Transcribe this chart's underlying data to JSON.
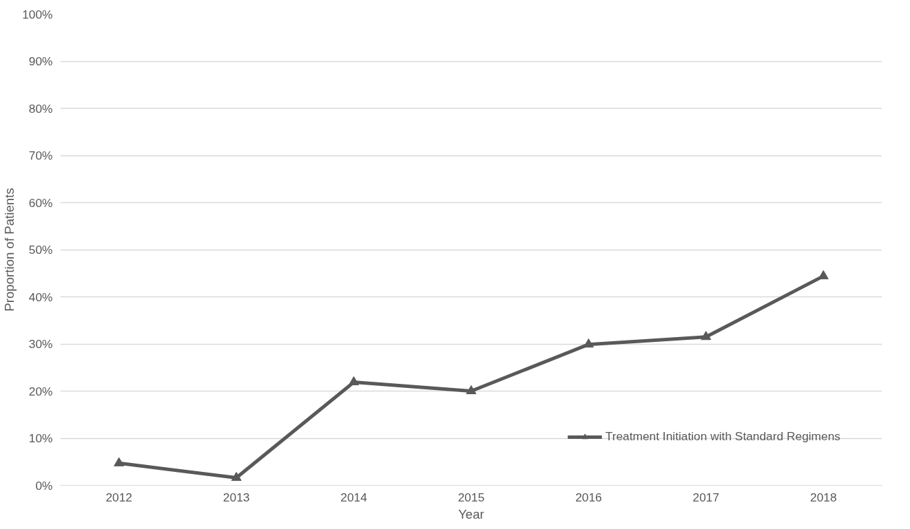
{
  "chart_data": {
    "type": "line",
    "xlabel": "Year",
    "ylabel": "Proportion of Patients",
    "categories": [
      "2012",
      "2013",
      "2014",
      "2015",
      "2016",
      "2017",
      "2018"
    ],
    "series": [
      {
        "name": "Treatment Initiation with Standard Regimens",
        "color": "#595959",
        "values": [
          4.7,
          1.6,
          21.9,
          20.0,
          29.9,
          31.5,
          44.4
        ]
      }
    ],
    "ylim": [
      0,
      100
    ],
    "yticks": [
      {
        "value": 0,
        "label": "0%"
      },
      {
        "value": 10,
        "label": "10%"
      },
      {
        "value": 20,
        "label": "20%"
      },
      {
        "value": 30,
        "label": "30%"
      },
      {
        "value": 40,
        "label": "40%"
      },
      {
        "value": 50,
        "label": "50%"
      },
      {
        "value": 60,
        "label": "60%"
      },
      {
        "value": 70,
        "label": "70%"
      },
      {
        "value": 80,
        "label": "80%"
      },
      {
        "value": 90,
        "label": "90%"
      },
      {
        "value": 100,
        "label": "100%"
      }
    ],
    "grid": "y",
    "legend": "bottom right",
    "marker": "triangle",
    "line_style": "solid"
  }
}
